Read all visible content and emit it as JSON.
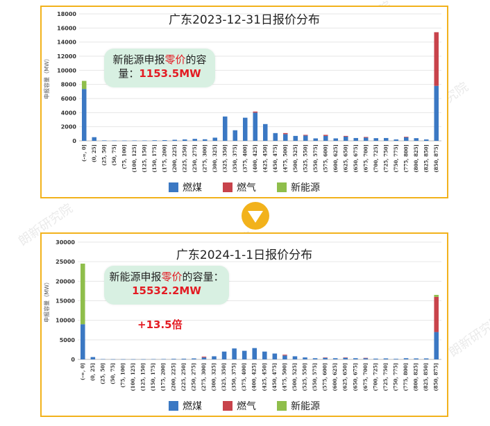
{
  "charts": [
    {
      "title": "广东2023-12-31日报价分布",
      "callout": {
        "line1_pre": "新能源申报",
        "line1_red": "零价",
        "line1_post": "的容",
        "line2_pre": "量：",
        "line2_value": "1153.5MW"
      },
      "legend": [
        "燃煤",
        "燃气",
        "新能源"
      ]
    },
    {
      "title": "广东2024-1-1日报价分布",
      "callout": {
        "line1_pre": "新能源申报",
        "line1_red": "零价",
        "line1_post": "的容量：",
        "line2_value": "15532.2MW"
      },
      "multiplier": "+13.5倍",
      "legend": [
        "燃煤",
        "燃气",
        "新能源"
      ]
    }
  ],
  "watermark": "朗新研究院",
  "colors": {
    "coal": "#3b78c3",
    "gas": "#c8434b",
    "renewable": "#8fbe4b",
    "border": "#f2b21b",
    "arrow": "#f2b21b"
  },
  "chart_data": [
    {
      "type": "bar",
      "stacked": true,
      "title": "广东2023-12-31日报价分布",
      "ylabel": "申报容量（MW）",
      "ylim": [
        0,
        18000
      ],
      "yticks": [
        0,
        2000,
        4000,
        6000,
        8000,
        10000,
        12000,
        14000,
        16000,
        18000
      ],
      "categories": [
        "(-∞, 0]",
        "(0, 25]",
        "(25, 50]",
        "(50, 75]",
        "(75, 100]",
        "(100, 125]",
        "(125, 150]",
        "(150, 175]",
        "(175, 200]",
        "(200, 225]",
        "(225, 250]",
        "(250, 275]",
        "(275, 300]",
        "(300, 325]",
        "(325, 350]",
        "(350, 375]",
        "(375, 400]",
        "(400, 425]",
        "(425, 450]",
        "(450, 475]",
        "(475, 500]",
        "(500, 525]",
        "(525, 550]",
        "(550, 575]",
        "(575, 600]",
        "(600, 625]",
        "(625, 650]",
        "(650, 675]",
        "(675, 700]",
        "(700, 725]",
        "(725, 750]",
        "(750, 775]",
        "(775, 800]",
        "(800, 825]",
        "(825, 850]",
        "(850, 875]"
      ],
      "series": [
        {
          "name": "燃煤",
          "values": [
            7350,
            520,
            60,
            40,
            40,
            50,
            50,
            80,
            100,
            150,
            200,
            280,
            220,
            450,
            3450,
            1500,
            3280,
            4000,
            2380,
            1100,
            950,
            700,
            750,
            350,
            700,
            350,
            600,
            400,
            450,
            380,
            400,
            200,
            500,
            380,
            200,
            7800
          ]
        },
        {
          "name": "燃气",
          "values": [
            0,
            0,
            0,
            0,
            0,
            0,
            0,
            0,
            0,
            0,
            0,
            0,
            0,
            0,
            0,
            0,
            0,
            150,
            0,
            0,
            150,
            0,
            100,
            0,
            150,
            0,
            100,
            0,
            100,
            0,
            0,
            0,
            80,
            0,
            0,
            7600
          ]
        },
        {
          "name": "新能源",
          "values": [
            1150,
            0,
            0,
            0,
            0,
            0,
            0,
            0,
            0,
            0,
            0,
            0,
            0,
            0,
            0,
            0,
            0,
            0,
            0,
            0,
            0,
            0,
            0,
            0,
            0,
            0,
            0,
            0,
            0,
            0,
            0,
            0,
            0,
            0,
            0,
            0
          ]
        }
      ]
    },
    {
      "type": "bar",
      "stacked": true,
      "title": "广东2024-1-1日报价分布",
      "ylabel": "申报容量（MW）",
      "ylim": [
        0,
        30000
      ],
      "yticks": [
        0,
        5000,
        10000,
        15000,
        20000,
        25000,
        30000
      ],
      "categories": [
        "(-∞, 0]",
        "(0, 25]",
        "(25, 50]",
        "(50, 75]",
        "(75, 100]",
        "(100, 125]",
        "(125, 150]",
        "(150, 175]",
        "(175, 200]",
        "(200, 225]",
        "(225, 250]",
        "(250, 275]",
        "(275, 300]",
        "(300, 325]",
        "(325, 350]",
        "(350, 375]",
        "(375, 400]",
        "(400, 425]",
        "(425, 450]",
        "(450, 475]",
        "(475, 500]",
        "(500, 525]",
        "(525, 550]",
        "(550, 575]",
        "(575, 600]",
        "(600, 625]",
        "(625, 650]",
        "(650, 675]",
        "(675, 700]",
        "(700, 725]",
        "(725, 750]",
        "(750, 775]",
        "(775, 800]",
        "(800, 825]",
        "(825, 850]",
        "(850, 875]"
      ],
      "series": [
        {
          "name": "燃煤",
          "values": [
            9000,
            600,
            80,
            50,
            50,
            50,
            50,
            80,
            100,
            150,
            180,
            250,
            500,
            800,
            2000,
            2800,
            2200,
            2900,
            2000,
            1500,
            1000,
            800,
            500,
            300,
            400,
            300,
            400,
            300,
            300,
            200,
            250,
            150,
            300,
            250,
            250,
            7000
          ]
        },
        {
          "name": "燃气",
          "values": [
            0,
            0,
            0,
            0,
            0,
            0,
            0,
            0,
            0,
            0,
            0,
            0,
            200,
            0,
            0,
            0,
            0,
            0,
            0,
            0,
            200,
            0,
            0,
            0,
            100,
            0,
            100,
            0,
            100,
            0,
            0,
            0,
            0,
            0,
            0,
            9000
          ]
        },
        {
          "name": "新能源",
          "values": [
            15500,
            0,
            0,
            0,
            0,
            0,
            0,
            0,
            0,
            0,
            0,
            0,
            0,
            0,
            0,
            0,
            0,
            0,
            0,
            0,
            0,
            0,
            0,
            0,
            0,
            0,
            0,
            0,
            0,
            0,
            0,
            0,
            0,
            0,
            0,
            500
          ]
        }
      ]
    }
  ]
}
